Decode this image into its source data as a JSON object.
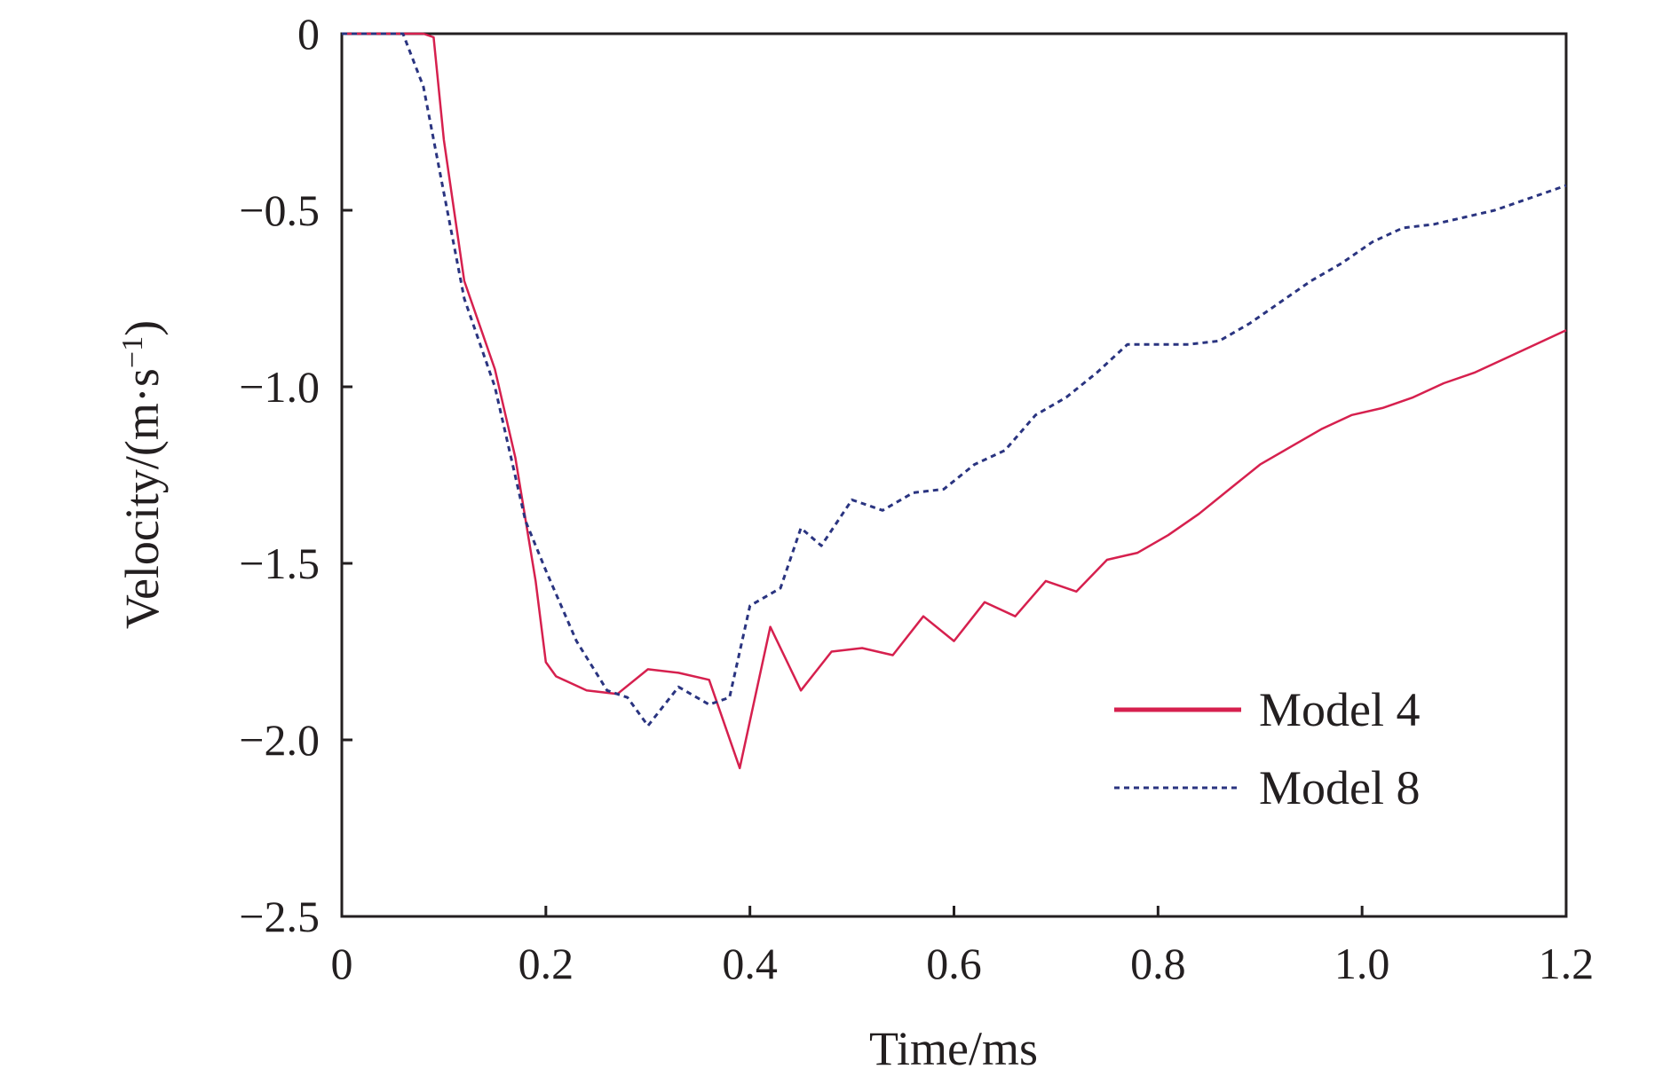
{
  "chart_data": {
    "type": "line",
    "xlabel": "Time/ms",
    "ylabel_main": "Velocity/(m·s",
    "ylabel_exp": "−1",
    "ylabel_close": ")",
    "xlim": [
      0,
      1.2
    ],
    "ylim": [
      -2.5,
      0
    ],
    "x_ticks": [
      {
        "value": 0,
        "label": "0"
      },
      {
        "value": 0.2,
        "label": "0.2"
      },
      {
        "value": 0.4,
        "label": "0.4"
      },
      {
        "value": 0.6,
        "label": "0.6"
      },
      {
        "value": 0.8,
        "label": "0.8"
      },
      {
        "value": 1.0,
        "label": "1.0"
      },
      {
        "value": 1.2,
        "label": "1.2"
      }
    ],
    "y_ticks": [
      {
        "value": 0,
        "label": "0"
      },
      {
        "value": -0.5,
        "label": "−0.5"
      },
      {
        "value": -1.0,
        "label": "−1.0"
      },
      {
        "value": -1.5,
        "label": "−1.5"
      },
      {
        "value": -2.0,
        "label": "−2.0"
      },
      {
        "value": -2.5,
        "label": "−2.5"
      }
    ],
    "grid": false,
    "legend_position": "bottom-right",
    "series": [
      {
        "name": "Model 4",
        "color": "#d6204e",
        "style": "solid",
        "x": [
          0,
          0.06,
          0.08,
          0.09,
          0.1,
          0.12,
          0.15,
          0.17,
          0.19,
          0.2,
          0.21,
          0.24,
          0.27,
          0.3,
          0.33,
          0.36,
          0.39,
          0.42,
          0.45,
          0.48,
          0.51,
          0.54,
          0.57,
          0.6,
          0.63,
          0.66,
          0.69,
          0.72,
          0.75,
          0.78,
          0.81,
          0.84,
          0.87,
          0.9,
          0.93,
          0.96,
          0.99,
          1.02,
          1.05,
          1.08,
          1.11,
          1.14,
          1.17,
          1.2
        ],
        "y": [
          0,
          0,
          0,
          -0.01,
          -0.3,
          -0.7,
          -0.95,
          -1.2,
          -1.55,
          -1.78,
          -1.82,
          -1.86,
          -1.87,
          -1.8,
          -1.81,
          -1.83,
          -2.08,
          -1.68,
          -1.86,
          -1.75,
          -1.74,
          -1.76,
          -1.65,
          -1.72,
          -1.61,
          -1.65,
          -1.55,
          -1.58,
          -1.49,
          -1.47,
          -1.42,
          -1.36,
          -1.29,
          -1.22,
          -1.17,
          -1.12,
          -1.08,
          -1.06,
          -1.03,
          -0.99,
          -0.96,
          -0.92,
          -0.88,
          -0.84
        ]
      },
      {
        "name": "Model 8",
        "color": "#2a3480",
        "style": "dashed",
        "x": [
          0,
          0.06,
          0.08,
          0.1,
          0.12,
          0.15,
          0.18,
          0.2,
          0.23,
          0.26,
          0.28,
          0.3,
          0.33,
          0.36,
          0.38,
          0.4,
          0.43,
          0.45,
          0.47,
          0.5,
          0.53,
          0.56,
          0.59,
          0.62,
          0.65,
          0.68,
          0.71,
          0.74,
          0.77,
          0.8,
          0.83,
          0.86,
          0.89,
          0.92,
          0.95,
          0.98,
          1.01,
          1.04,
          1.07,
          1.1,
          1.13,
          1.16,
          1.2
        ],
        "y": [
          0,
          0,
          -0.15,
          -0.45,
          -0.75,
          -1.0,
          -1.38,
          -1.52,
          -1.72,
          -1.86,
          -1.88,
          -1.96,
          -1.85,
          -1.9,
          -1.88,
          -1.62,
          -1.57,
          -1.4,
          -1.45,
          -1.32,
          -1.35,
          -1.3,
          -1.29,
          -1.22,
          -1.18,
          -1.08,
          -1.03,
          -0.96,
          -0.88,
          -0.88,
          -0.88,
          -0.87,
          -0.82,
          -0.76,
          -0.7,
          -0.65,
          -0.59,
          -0.55,
          -0.54,
          -0.52,
          -0.5,
          -0.47,
          -0.43
        ]
      }
    ]
  }
}
